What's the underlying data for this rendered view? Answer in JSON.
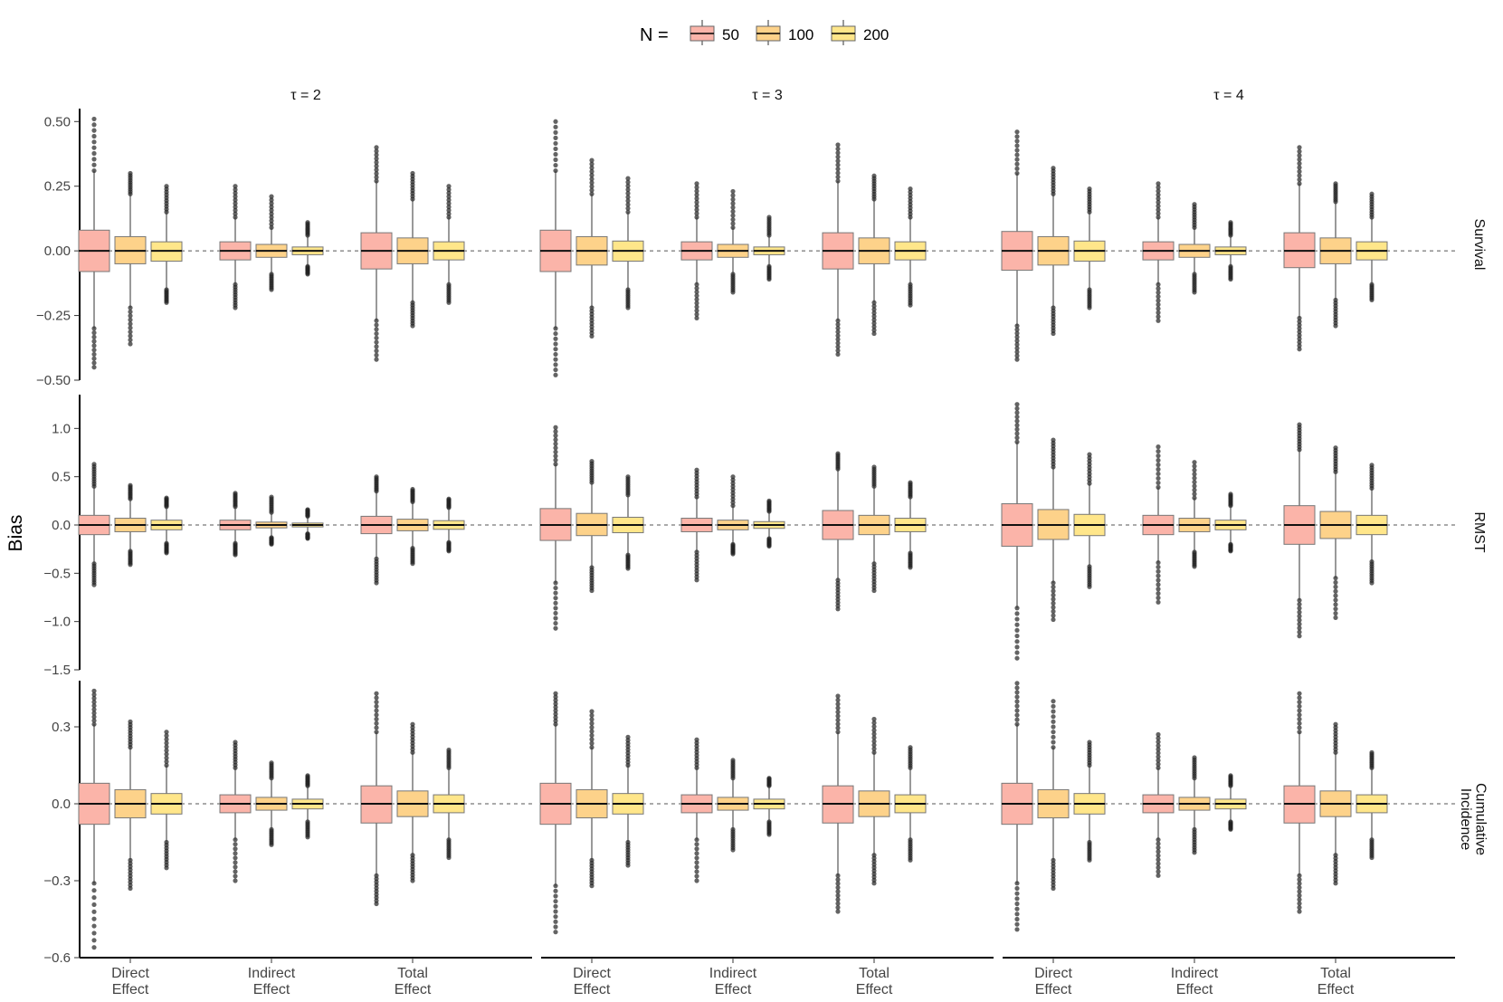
{
  "chart_data": {
    "type": "boxplot",
    "ylabel": "Bias",
    "legend": {
      "title": "N =",
      "position": "top",
      "entries": [
        {
          "label": "50",
          "color": "#FBB4A9"
        },
        {
          "label": "100",
          "color": "#FDD28A"
        },
        {
          "label": "200",
          "color": "#FFE68A"
        }
      ]
    },
    "column_facets": [
      "τ = 2",
      "τ = 3",
      "τ = 4"
    ],
    "row_facets": [
      {
        "label": "Survival",
        "ylim": [
          -0.5,
          0.55
        ],
        "ticks": [
          -0.5,
          -0.25,
          0.0,
          0.25,
          0.5
        ],
        "tick_labels": [
          "−0.50",
          "−0.25",
          "0.00",
          "0.25",
          "0.50"
        ]
      },
      {
        "label": "RMST",
        "ylim": [
          -1.5,
          1.35
        ],
        "ticks": [
          -1.5,
          -1.0,
          -0.5,
          0.0,
          0.5,
          1.0
        ],
        "tick_labels": [
          "−1.5",
          "−1.0",
          "−0.5",
          "0.0",
          "0.5",
          "1.0"
        ]
      },
      {
        "label": "Cumulative Incidence",
        "ylim": [
          -0.6,
          0.48
        ],
        "ticks": [
          -0.6,
          -0.3,
          0.0,
          0.3
        ],
        "tick_labels": [
          "−0.6",
          "−0.3",
          "0.0",
          "0.3"
        ]
      }
    ],
    "categories": [
      [
        "Direct",
        "Effect"
      ],
      [
        "Indirect",
        "Effect"
      ],
      [
        "Total",
        "Effect"
      ]
    ],
    "series": [
      "50",
      "100",
      "200"
    ],
    "reference_line": 0,
    "grid": false,
    "boxes": {
      "Survival": [
        [
          [
            [
              -0.08,
              0.08,
              0.31,
              -0.3,
              0.51,
              -0.45
            ],
            [
              -0.05,
              0.055,
              0.22,
              -0.22,
              0.3,
              -0.36
            ],
            [
              -0.04,
              0.035,
              0.15,
              -0.15,
              0.25,
              -0.2
            ]
          ],
          [
            [
              -0.035,
              0.035,
              0.13,
              -0.13,
              0.25,
              -0.22
            ],
            [
              -0.025,
              0.025,
              0.09,
              -0.09,
              0.21,
              -0.15
            ],
            [
              -0.015,
              0.015,
              0.06,
              -0.06,
              0.11,
              -0.09
            ]
          ],
          [
            [
              -0.07,
              0.07,
              0.27,
              -0.27,
              0.4,
              -0.42
            ],
            [
              -0.05,
              0.05,
              0.2,
              -0.2,
              0.3,
              -0.29
            ],
            [
              -0.035,
              0.035,
              0.13,
              -0.13,
              0.25,
              -0.2
            ]
          ]
        ],
        [
          [
            [
              -0.08,
              0.08,
              0.31,
              -0.3,
              0.5,
              -0.48
            ],
            [
              -0.055,
              0.055,
              0.22,
              -0.22,
              0.35,
              -0.33
            ],
            [
              -0.04,
              0.038,
              0.15,
              -0.15,
              0.28,
              -0.22
            ]
          ],
          [
            [
              -0.035,
              0.035,
              0.13,
              -0.13,
              0.26,
              -0.26
            ],
            [
              -0.025,
              0.025,
              0.09,
              -0.09,
              0.23,
              -0.16
            ],
            [
              -0.015,
              0.015,
              0.06,
              -0.06,
              0.13,
              -0.11
            ]
          ],
          [
            [
              -0.07,
              0.07,
              0.27,
              -0.27,
              0.41,
              -0.4
            ],
            [
              -0.05,
              0.05,
              0.2,
              -0.2,
              0.29,
              -0.32
            ],
            [
              -0.035,
              0.035,
              0.13,
              -0.13,
              0.24,
              -0.21
            ]
          ]
        ],
        [
          [
            [
              -0.075,
              0.075,
              0.3,
              -0.29,
              0.46,
              -0.42
            ],
            [
              -0.055,
              0.055,
              0.22,
              -0.22,
              0.32,
              -0.32
            ],
            [
              -0.04,
              0.038,
              0.15,
              -0.15,
              0.24,
              -0.22
            ]
          ],
          [
            [
              -0.035,
              0.035,
              0.13,
              -0.13,
              0.26,
              -0.27
            ],
            [
              -0.025,
              0.025,
              0.09,
              -0.09,
              0.18,
              -0.16
            ],
            [
              -0.015,
              0.015,
              0.06,
              -0.06,
              0.11,
              -0.11
            ]
          ],
          [
            [
              -0.065,
              0.07,
              0.26,
              -0.26,
              0.4,
              -0.38
            ],
            [
              -0.05,
              0.05,
              0.19,
              -0.19,
              0.26,
              -0.29
            ],
            [
              -0.035,
              0.035,
              0.13,
              -0.13,
              0.22,
              -0.19
            ]
          ]
        ]
      ],
      "RMST": [
        [
          [
            [
              -0.1,
              0.1,
              0.4,
              -0.4,
              0.63,
              -0.62
            ],
            [
              -0.07,
              0.07,
              0.27,
              -0.27,
              0.41,
              -0.41
            ],
            [
              -0.05,
              0.05,
              0.19,
              -0.19,
              0.28,
              -0.29
            ]
          ],
          [
            [
              -0.05,
              0.05,
              0.19,
              -0.19,
              0.33,
              -0.31
            ],
            [
              -0.03,
              0.03,
              0.13,
              -0.13,
              0.29,
              -0.2
            ],
            [
              -0.02,
              0.02,
              0.09,
              -0.09,
              0.16,
              -0.14
            ]
          ],
          [
            [
              -0.09,
              0.09,
              0.35,
              -0.35,
              0.5,
              -0.6
            ],
            [
              -0.06,
              0.06,
              0.24,
              -0.24,
              0.37,
              -0.4
            ],
            [
              -0.045,
              0.045,
              0.18,
              -0.18,
              0.27,
              -0.27
            ]
          ]
        ],
        [
          [
            [
              -0.16,
              0.17,
              0.63,
              -0.6,
              1.01,
              -1.07
            ],
            [
              -0.11,
              0.12,
              0.44,
              -0.44,
              0.66,
              -0.68
            ],
            [
              -0.08,
              0.08,
              0.31,
              -0.31,
              0.5,
              -0.45
            ]
          ],
          [
            [
              -0.07,
              0.07,
              0.29,
              -0.28,
              0.57,
              -0.57
            ],
            [
              -0.05,
              0.05,
              0.2,
              -0.2,
              0.5,
              -0.3
            ],
            [
              -0.035,
              0.035,
              0.14,
              -0.14,
              0.25,
              -0.22
            ]
          ],
          [
            [
              -0.15,
              0.15,
              0.58,
              -0.57,
              0.74,
              -0.87
            ],
            [
              -0.1,
              0.1,
              0.4,
              -0.4,
              0.6,
              -0.68
            ],
            [
              -0.07,
              0.07,
              0.29,
              -0.29,
              0.44,
              -0.44
            ]
          ]
        ],
        [
          [
            [
              -0.22,
              0.22,
              0.86,
              -0.86,
              1.25,
              -1.38
            ],
            [
              -0.15,
              0.16,
              0.6,
              -0.6,
              0.88,
              -0.98
            ],
            [
              -0.11,
              0.11,
              0.43,
              -0.43,
              0.73,
              -0.64
            ]
          ],
          [
            [
              -0.1,
              0.1,
              0.39,
              -0.39,
              0.81,
              -0.8
            ],
            [
              -0.07,
              0.07,
              0.28,
              -0.28,
              0.65,
              -0.43
            ],
            [
              -0.05,
              0.05,
              0.2,
              -0.2,
              0.32,
              -0.27
            ]
          ],
          [
            [
              -0.2,
              0.2,
              0.78,
              -0.78,
              1.04,
              -1.15
            ],
            [
              -0.14,
              0.14,
              0.55,
              -0.55,
              0.8,
              -0.96
            ],
            [
              -0.1,
              0.1,
              0.38,
              -0.38,
              0.62,
              -0.6
            ]
          ]
        ]
      ],
      "Cumulative Incidence": [
        [
          [
            [
              -0.08,
              0.08,
              0.31,
              -0.31,
              0.44,
              -0.56
            ],
            [
              -0.055,
              0.055,
              0.22,
              -0.22,
              0.32,
              -0.33
            ],
            [
              -0.04,
              0.04,
              0.15,
              -0.15,
              0.28,
              -0.25
            ]
          ],
          [
            [
              -0.035,
              0.035,
              0.14,
              -0.14,
              0.24,
              -0.3
            ],
            [
              -0.025,
              0.025,
              0.1,
              -0.1,
              0.16,
              -0.16
            ],
            [
              -0.02,
              0.018,
              0.07,
              -0.07,
              0.11,
              -0.13
            ]
          ],
          [
            [
              -0.075,
              0.07,
              0.28,
              -0.28,
              0.43,
              -0.39
            ],
            [
              -0.05,
              0.05,
              0.2,
              -0.2,
              0.31,
              -0.3
            ],
            [
              -0.035,
              0.035,
              0.14,
              -0.14,
              0.21,
              -0.21
            ]
          ]
        ],
        [
          [
            [
              -0.08,
              0.08,
              0.31,
              -0.32,
              0.43,
              -0.5
            ],
            [
              -0.055,
              0.055,
              0.22,
              -0.22,
              0.36,
              -0.32
            ],
            [
              -0.04,
              0.04,
              0.15,
              -0.15,
              0.26,
              -0.24
            ]
          ],
          [
            [
              -0.035,
              0.035,
              0.14,
              -0.14,
              0.25,
              -0.3
            ],
            [
              -0.025,
              0.025,
              0.1,
              -0.1,
              0.17,
              -0.18
            ],
            [
              -0.02,
              0.018,
              0.07,
              -0.07,
              0.1,
              -0.12
            ]
          ],
          [
            [
              -0.075,
              0.07,
              0.28,
              -0.28,
              0.42,
              -0.42
            ],
            [
              -0.05,
              0.05,
              0.2,
              -0.2,
              0.33,
              -0.31
            ],
            [
              -0.035,
              0.035,
              0.14,
              -0.14,
              0.22,
              -0.22
            ]
          ]
        ],
        [
          [
            [
              -0.08,
              0.08,
              0.31,
              -0.31,
              0.47,
              -0.49
            ],
            [
              -0.055,
              0.055,
              0.22,
              -0.22,
              0.4,
              -0.33
            ],
            [
              -0.04,
              0.04,
              0.15,
              -0.15,
              0.24,
              -0.22
            ]
          ],
          [
            [
              -0.035,
              0.035,
              0.14,
              -0.14,
              0.27,
              -0.28
            ],
            [
              -0.025,
              0.025,
              0.1,
              -0.1,
              0.18,
              -0.19
            ],
            [
              -0.02,
              0.018,
              0.07,
              -0.07,
              0.11,
              -0.1
            ]
          ],
          [
            [
              -0.075,
              0.07,
              0.28,
              -0.28,
              0.43,
              -0.42
            ],
            [
              -0.05,
              0.05,
              0.2,
              -0.2,
              0.31,
              -0.31
            ],
            [
              -0.035,
              0.035,
              0.14,
              -0.14,
              0.2,
              -0.21
            ]
          ]
        ]
      ]
    },
    "box_value_order": [
      "q1",
      "q3",
      "whisker_high",
      "whisker_low",
      "max",
      "min"
    ],
    "medians": 0.0
  }
}
